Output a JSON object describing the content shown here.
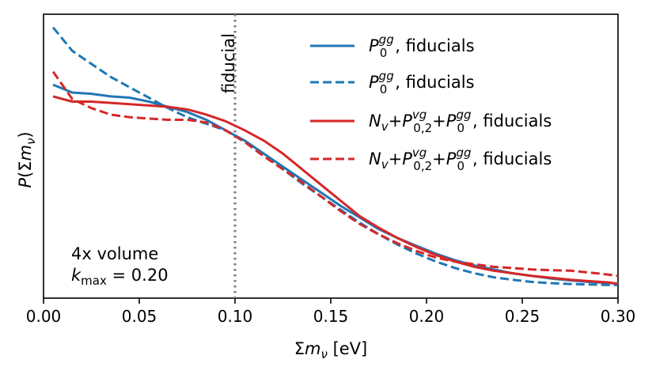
{
  "chart_data": {
    "type": "line",
    "xlabel": "Σm_ν [eV]",
    "ylabel": "P(Σm_ν)",
    "xlim": [
      0.0,
      0.3
    ],
    "ylim": [
      0.0,
      1.0
    ],
    "x_ticks": [
      "0.00",
      "0.05",
      "0.10",
      "0.15",
      "0.20",
      "0.25",
      "0.30"
    ],
    "x_tick_values": [
      0.0,
      0.05,
      0.1,
      0.15,
      0.2,
      0.25,
      0.3
    ],
    "fiducial": {
      "x": 0.1,
      "label": "fiducial",
      "color": "#808080"
    },
    "annotation": {
      "line1": "4x volume",
      "line2_sym": "k",
      "line2_sub": "max",
      "line2_val": " = 0.20"
    },
    "series": [
      {
        "name": "P0gg, fiducials (solid)",
        "color": "#1f77b4",
        "style": "solid",
        "legend": {
          "base": "P",
          "sub": "0",
          "sup": "gg",
          "suffix": ", fiducials"
        },
        "x": [
          0.005,
          0.015,
          0.025,
          0.035,
          0.045,
          0.055,
          0.065,
          0.075,
          0.085,
          0.095,
          0.105,
          0.115,
          0.125,
          0.135,
          0.145,
          0.155,
          0.165,
          0.175,
          0.185,
          0.195,
          0.205,
          0.215,
          0.225,
          0.235,
          0.245,
          0.255,
          0.265,
          0.275,
          0.285,
          0.295,
          0.3
        ],
        "values": [
          0.79,
          0.76,
          0.755,
          0.745,
          0.74,
          0.725,
          0.705,
          0.685,
          0.655,
          0.615,
          0.575,
          0.525,
          0.475,
          0.425,
          0.375,
          0.325,
          0.28,
          0.235,
          0.2,
          0.17,
          0.14,
          0.115,
          0.095,
          0.08,
          0.065,
          0.055,
          0.045,
          0.038,
          0.032,
          0.028,
          0.025
        ]
      },
      {
        "name": "P0gg, fiducials (dashed)",
        "color": "#1f77b4",
        "style": "dashed",
        "legend": {
          "base": "P",
          "sub": "0",
          "sup": "gg",
          "suffix": ", fiducials"
        },
        "x": [
          0.005,
          0.015,
          0.025,
          0.035,
          0.045,
          0.055,
          0.065,
          0.075,
          0.085,
          0.095,
          0.105,
          0.115,
          0.125,
          0.135,
          0.145,
          0.155,
          0.165,
          0.175,
          0.185,
          0.195,
          0.205,
          0.215,
          0.225,
          0.235,
          0.245,
          0.255,
          0.265,
          0.275,
          0.285,
          0.295,
          0.3
        ],
        "values": [
          1.01,
          0.92,
          0.87,
          0.82,
          0.78,
          0.74,
          0.7,
          0.665,
          0.64,
          0.615,
          0.575,
          0.525,
          0.465,
          0.41,
          0.36,
          0.31,
          0.26,
          0.215,
          0.175,
          0.14,
          0.11,
          0.085,
          0.065,
          0.05,
          0.04,
          0.032,
          0.027,
          0.024,
          0.022,
          0.02,
          0.02
        ]
      },
      {
        "name": "Nv+P02vg+P0gg, fiducials (solid)",
        "color": "#d62728",
        "style": "solid",
        "legend": {
          "pre": "N",
          "pre_sub": "v",
          "mid": "+",
          "base": "P",
          "sub": "0,2",
          "sup": "vg",
          "mid2": "+",
          "base2": "P",
          "sub2": "0",
          "sup2": "gg",
          "suffix": ", fiducials"
        },
        "x": [
          0.005,
          0.015,
          0.025,
          0.035,
          0.045,
          0.055,
          0.065,
          0.075,
          0.085,
          0.095,
          0.105,
          0.115,
          0.125,
          0.135,
          0.145,
          0.155,
          0.165,
          0.175,
          0.185,
          0.195,
          0.205,
          0.215,
          0.225,
          0.235,
          0.245,
          0.255,
          0.265,
          0.275,
          0.285,
          0.295,
          0.3
        ],
        "values": [
          0.745,
          0.725,
          0.725,
          0.72,
          0.715,
          0.71,
          0.705,
          0.695,
          0.675,
          0.65,
          0.615,
          0.575,
          0.525,
          0.465,
          0.405,
          0.345,
          0.285,
          0.24,
          0.2,
          0.165,
          0.135,
          0.11,
          0.09,
          0.075,
          0.065,
          0.055,
          0.048,
          0.04,
          0.035,
          0.03,
          0.025
        ]
      },
      {
        "name": "Nv+P02vg+P0gg, fiducials (dashed)",
        "color": "#d62728",
        "style": "dashed",
        "legend": {
          "pre": "N",
          "pre_sub": "v",
          "mid": "+",
          "base": "P",
          "sub": "0,2",
          "sup": "vg",
          "mid2": "+",
          "base2": "P",
          "sub2": "0",
          "sup2": "gg",
          "suffix": ", fiducials"
        },
        "x": [
          0.005,
          0.015,
          0.025,
          0.035,
          0.045,
          0.055,
          0.065,
          0.075,
          0.085,
          0.095,
          0.105,
          0.115,
          0.125,
          0.135,
          0.145,
          0.155,
          0.165,
          0.175,
          0.185,
          0.195,
          0.205,
          0.215,
          0.225,
          0.235,
          0.245,
          0.255,
          0.265,
          0.275,
          0.285,
          0.295,
          0.3
        ],
        "values": [
          0.84,
          0.735,
          0.7,
          0.675,
          0.665,
          0.66,
          0.655,
          0.655,
          0.645,
          0.615,
          0.57,
          0.515,
          0.465,
          0.415,
          0.36,
          0.305,
          0.255,
          0.215,
          0.18,
          0.15,
          0.125,
          0.11,
          0.1,
          0.09,
          0.085,
          0.08,
          0.077,
          0.075,
          0.068,
          0.06,
          0.055
        ]
      }
    ]
  }
}
